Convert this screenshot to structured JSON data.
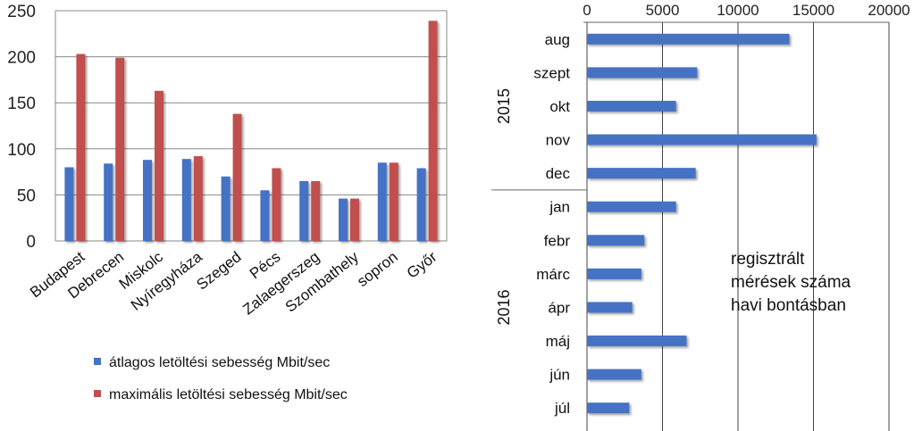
{
  "chart_data": [
    {
      "type": "bar",
      "categories": [
        "Budapest",
        "Debrecen",
        "Miskolc",
        "Nyíregyháza",
        "Szeged",
        "Pécs",
        "Zalaegerszeg",
        "Szombathely",
        "sopron",
        "Győr"
      ],
      "series": [
        {
          "name": "átlagos letöltési sebesség Mbit/sec",
          "values": [
            80,
            84,
            88,
            89,
            70,
            55,
            65,
            46,
            85,
            79
          ],
          "color": "#4472C4"
        },
        {
          "name": "maximális letöltési sebesség Mbit/sec",
          "values": [
            203,
            199,
            163,
            92,
            138,
            79,
            65,
            46,
            85,
            239
          ],
          "color": "#C0504D"
        }
      ],
      "ylim": [
        0,
        250
      ],
      "yticks": [
        0,
        50,
        100,
        150,
        200,
        250
      ],
      "grid": true,
      "legend": "bottom"
    },
    {
      "type": "bar",
      "orientation": "horizontal",
      "categories": [
        "aug",
        "szept",
        "okt",
        "nov",
        "dec",
        "jan",
        "febr",
        "márc",
        "ápr",
        "máj",
        "jún",
        "júl"
      ],
      "groups": [
        {
          "label": "2015",
          "count": 5
        },
        {
          "label": "2016",
          "count": 7
        }
      ],
      "values": [
        13400,
        7300,
        5900,
        15200,
        7200,
        5900,
        3800,
        3600,
        3000,
        6600,
        3600,
        2800
      ],
      "color": "#4472C4",
      "xlim": [
        0,
        20000
      ],
      "xticks": [
        0,
        5000,
        10000,
        15000,
        20000
      ],
      "grid": true,
      "annotation": [
        "regisztrált",
        "mérések száma",
        "havi bontásban"
      ]
    }
  ]
}
